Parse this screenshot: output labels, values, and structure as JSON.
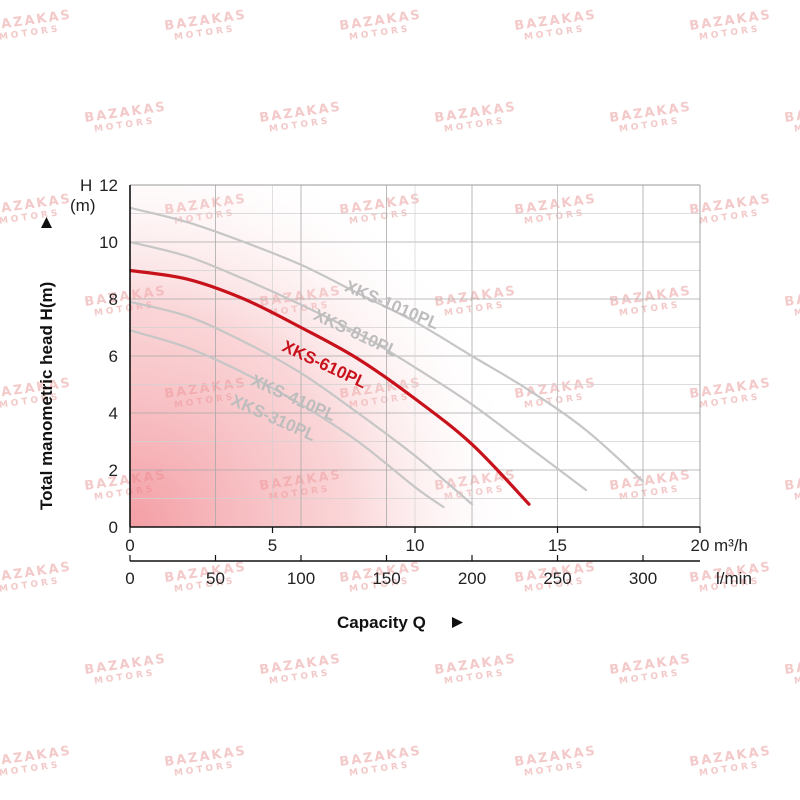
{
  "chart_data": {
    "type": "line",
    "ylabel": "Total manometric head H(m)",
    "y_unit_top": "H",
    "y_unit_bottom": "(m)",
    "xlabel": "Capacity Q",
    "ylim": [
      0,
      12
    ],
    "y_ticks": [
      "0",
      "2",
      "4",
      "6",
      "8",
      "10",
      "12"
    ],
    "x_m3h": {
      "lim": [
        0,
        20
      ],
      "ticks": [
        "0",
        "5",
        "10",
        "15",
        "20"
      ],
      "unit": "m³/h"
    },
    "x_lmin": {
      "ticks": [
        "0",
        "50",
        "100",
        "150",
        "200",
        "250",
        "300"
      ],
      "unit": "l/min"
    },
    "grid": true,
    "series": [
      {
        "name": "XKS-310PL",
        "color": "#c6c6c6",
        "highlight": false,
        "x": [
          0,
          2,
          4,
          6,
          8,
          10,
          11
        ],
        "y": [
          6.9,
          6.3,
          5.4,
          4.3,
          3.0,
          1.4,
          0.7
        ]
      },
      {
        "name": "XKS-410PL",
        "color": "#c6c6c6",
        "highlight": false,
        "x": [
          0,
          2,
          4,
          6,
          8,
          10,
          12
        ],
        "y": [
          7.9,
          7.4,
          6.5,
          5.4,
          4.0,
          2.5,
          0.8
        ]
      },
      {
        "name": "XKS-610PL",
        "color": "#c8121b",
        "highlight": true,
        "x": [
          0,
          2,
          4,
          6,
          8,
          10,
          12,
          14
        ],
        "y": [
          9.0,
          8.7,
          8.0,
          7.0,
          5.9,
          4.5,
          2.9,
          0.8
        ]
      },
      {
        "name": "XKS-810PL",
        "color": "#c6c6c6",
        "highlight": false,
        "x": [
          0,
          2,
          4,
          6,
          8,
          10,
          12,
          14,
          16
        ],
        "y": [
          10.0,
          9.5,
          8.7,
          7.8,
          6.8,
          5.6,
          4.3,
          2.8,
          1.3
        ]
      },
      {
        "name": "XKS-1010PL",
        "color": "#c6c6c6",
        "highlight": false,
        "x": [
          0,
          2,
          4,
          6,
          8,
          10,
          12,
          14,
          16,
          18
        ],
        "y": [
          11.2,
          10.7,
          10.0,
          9.2,
          8.2,
          7.2,
          6.0,
          4.8,
          3.4,
          1.6
        ]
      }
    ]
  },
  "watermark": {
    "brand_top": "BAZAKAS",
    "brand_bottom": "MOTORS"
  }
}
